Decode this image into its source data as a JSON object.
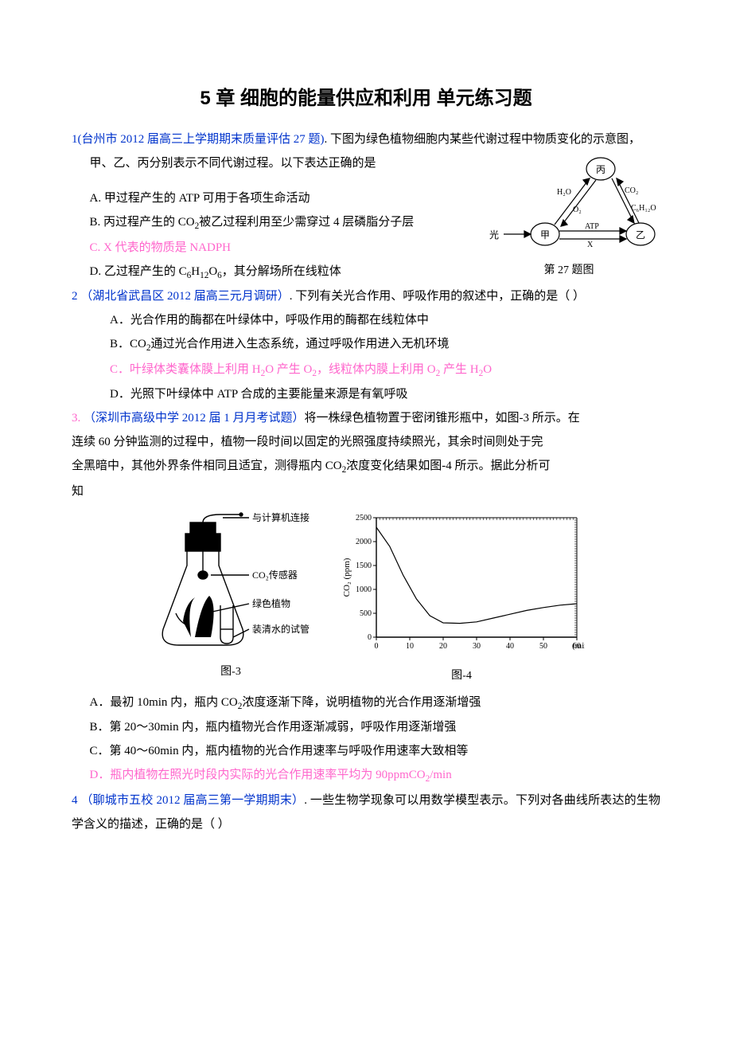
{
  "title": "5 章 细胞的能量供应和利用 单元练习题",
  "q1": {
    "lead_num": "1",
    "lead_src": "(台州市 2012 届高三上学期期末质量评估 27 题)",
    "lead_tail": ". 下图为绿色植物细胞内某些代谢过程中物质变化的示意图，",
    "line2": "甲、乙、丙分别表示不同代谢过程。以下表达正确的是",
    "A": "A. 甲过程产生的 ATP 可用于各项生命活动",
    "B_pre": "B. 丙过程产生的 CO",
    "B_mid": "被乙过程利用至少需穿过 4 层磷脂分子层",
    "C": "C. X 代表的物质是 NADPH",
    "D_pre": "D. 乙过程产生的 C",
    "D_h": "H",
    "D_o": "O",
    "D_tail": "，其分解场所在线粒体",
    "fig27": {
      "cap": "第 27 题图",
      "node_jia": "甲",
      "node_yi": "乙",
      "node_bing": "丙",
      "lbl_h2o": "H₂O",
      "lbl_o2": "O₂",
      "lbl_co2": "CO₂",
      "lbl_c6": "C₆H₁₂O₆",
      "lbl_guang": "光",
      "lbl_atp": "ATP",
      "lbl_x": "X",
      "colors": {
        "stroke": "#000000",
        "fill": "#ffffff",
        "text": "#000000"
      }
    }
  },
  "q2": {
    "lead_num": "2 ",
    "lead_src": "（湖北省武昌区 2012 届高三元月调研）",
    "lead_tail": ". 下列有关光合作用、呼吸作用的叙述中，正确的是（    ）",
    "A": "A．光合作用的酶都在叶绿体中，呼吸作用的酶都在线粒体中",
    "B_pre": "B．CO",
    "B_tail": "通过光合作用进入生态系统，通过呼吸作用进入无机环境",
    "C_pre": "C．叶绿体类囊体膜上利用 H",
    "C_mid1": "O 产生 O",
    "C_mid2": "，线粒体内膜上利用 O",
    "C_mid3": " 产生 H",
    "C_tail": "O",
    "D": "D．光照下叶绿体中 ATP 合成的主要能量来源是有氧呼吸"
  },
  "q3": {
    "lead_num": "3. ",
    "lead_src": "（深圳市高级中学 2012 届 1 月月考试题）",
    "lead_tail1": "将一株绿色植物置于密闭锥形瓶中，如图-3 所示。在",
    "line2": "连续 60 分钟监测的过程中，植物一段时间以固定的光照强度持续照光，其余时间则处于完",
    "line3_pre": "全黑暗中，其他外界条件相同且适宜，测得瓶内 CO",
    "line3_tail": "浓度变化结果如图-4 所示。据此分析可",
    "line4": "知",
    "fig3": {
      "cap": "图-3",
      "lbl1": "与计算机连接",
      "lbl2": "CO₂传感器",
      "lbl3": "绿色植物",
      "lbl4": "装清水的试管"
    },
    "fig4": {
      "cap": "图-4",
      "ylabel": "CO₂ (ppm)",
      "xlabel": "(min)",
      "xlim": [
        0,
        60
      ],
      "ylim": [
        0,
        2500
      ],
      "xticks": [
        0,
        10,
        20,
        30,
        40,
        50,
        60
      ],
      "yticks": [
        0,
        500,
        1000,
        1500,
        2000,
        2500
      ],
      "curve": [
        [
          0,
          2300
        ],
        [
          4,
          1900
        ],
        [
          8,
          1300
        ],
        [
          12,
          800
        ],
        [
          16,
          450
        ],
        [
          20,
          300
        ],
        [
          25,
          290
        ],
        [
          30,
          320
        ],
        [
          35,
          400
        ],
        [
          40,
          480
        ],
        [
          45,
          560
        ],
        [
          50,
          620
        ],
        [
          55,
          670
        ],
        [
          60,
          700
        ]
      ],
      "colors": {
        "axis": "#000000",
        "grid": "#000000",
        "curve": "#000000",
        "bg": "#ffffff"
      },
      "line_width": 1.2,
      "tick_fontsize": 10
    },
    "A_pre": "A．最初 10min 内，瓶内 CO",
    "A_tail": "浓度逐渐下降，说明植物的光合作用逐渐增强",
    "B": "B．第 20～30min 内，瓶内植物光合作用逐渐减弱，呼吸作用逐渐增强",
    "C": "C．第 40～60min 内，瓶内植物的光合作用速率与呼吸作用速率大致相等",
    "D_pre": "D．瓶内植物在照光时段内实际的光合作用速率平均为 90ppmCO",
    "D_tail": "/min"
  },
  "q4": {
    "lead_num": "4 ",
    "lead_src": "（聊城市五校 2012 届高三第一学期期末）",
    "lead_tail": ". 一些生物学现象可以用数学模型表示。下列对各曲线所表达的生物学含义的描述，正确的是（   ）"
  }
}
